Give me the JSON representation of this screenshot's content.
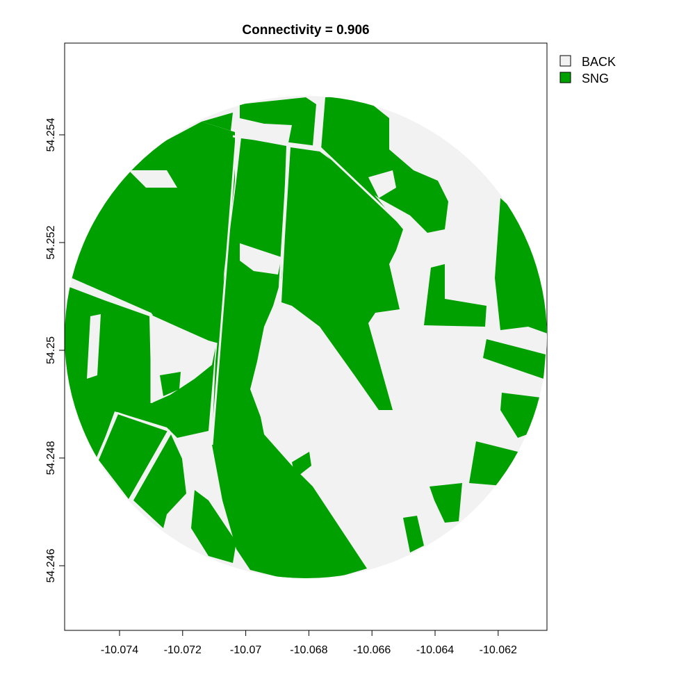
{
  "title": "Connectivity = 0.906",
  "legend": {
    "items": [
      {
        "label": "BACK",
        "color": "#f2f2f2"
      },
      {
        "label": "SNG",
        "color": "#00a000"
      }
    ]
  },
  "axes": {
    "x_ticks": [
      "-10.074",
      "-10.072",
      "-10.07",
      "-10.068",
      "-10.066",
      "-10.064",
      "-10.062"
    ],
    "y_ticks": [
      "54.246",
      "54.248",
      "54.25",
      "54.252",
      "54.254"
    ]
  },
  "colors": {
    "background_class": "#f2f2f2",
    "sng_class": "#00a000",
    "frame": "#000000"
  }
}
